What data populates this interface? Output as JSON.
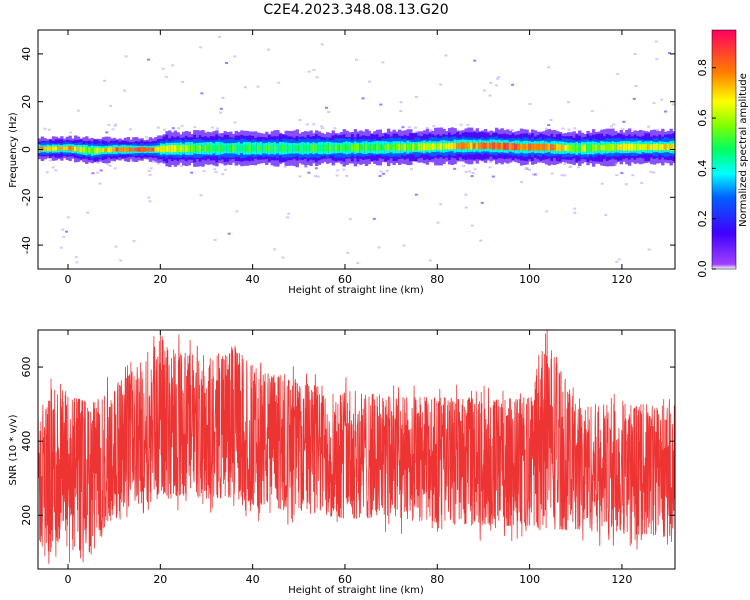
{
  "figure": {
    "title": "C2E4.2023.348.08.13.G20"
  },
  "chart_data": [
    {
      "type": "heatmap",
      "xlabel": "Height of straight line (km)",
      "ylabel": "Frequency (Hz)",
      "xlim": [
        -6.5,
        131.5
      ],
      "ylim": [
        -50,
        50
      ],
      "xticks": [
        0,
        20,
        40,
        60,
        80,
        100,
        120
      ],
      "yticks": [
        -40,
        -20,
        0,
        20,
        40
      ],
      "colorscale": [
        "#8000ff",
        "#0000ff",
        "#00ffff",
        "#00ff00",
        "#ffff00",
        "#ff8000",
        "#ff0040"
      ],
      "colorbar": {
        "label": "Normalized spectral amplitude",
        "range": [
          0,
          0.95
        ],
        "ticks": [
          0.0,
          0.2,
          0.4,
          0.6,
          0.8
        ]
      },
      "band_profile": [
        {
          "x": -6,
          "center": 0.3,
          "halfwidth": 2.0,
          "peak": 0.8
        },
        {
          "x": 0,
          "center": 0.5,
          "halfwidth": 2.0,
          "peak": 0.85
        },
        {
          "x": 5,
          "center": -0.5,
          "halfwidth": 2.5,
          "peak": 0.6
        },
        {
          "x": 10,
          "center": 0.0,
          "halfwidth": 2.0,
          "peak": 0.9
        },
        {
          "x": 18,
          "center": 0.0,
          "halfwidth": 2.0,
          "peak": 0.9
        },
        {
          "x": 21,
          "center": 0.3,
          "halfwidth": 3.0,
          "peak": 0.7
        },
        {
          "x": 30,
          "center": 0.5,
          "halfwidth": 3.0,
          "peak": 0.55
        },
        {
          "x": 50,
          "center": 0.5,
          "halfwidth": 3.0,
          "peak": 0.5
        },
        {
          "x": 75,
          "center": 1.0,
          "halfwidth": 3.0,
          "peak": 0.6
        },
        {
          "x": 85,
          "center": 1.5,
          "halfwidth": 3.0,
          "peak": 0.8
        },
        {
          "x": 92,
          "center": 1.5,
          "halfwidth": 3.0,
          "peak": 0.95
        },
        {
          "x": 98,
          "center": 1.0,
          "halfwidth": 3.0,
          "peak": 0.92
        },
        {
          "x": 103,
          "center": 1.0,
          "halfwidth": 3.0,
          "peak": 0.9
        },
        {
          "x": 110,
          "center": 0.5,
          "halfwidth": 3.0,
          "peak": 0.6
        },
        {
          "x": 120,
          "center": 1.0,
          "halfwidth": 3.0,
          "peak": 0.7
        },
        {
          "x": 131,
          "center": 1.0,
          "halfwidth": 3.0,
          "peak": 0.75
        }
      ]
    },
    {
      "type": "line",
      "xlabel": "Height of straight line (km)",
      "ylabel": "SNR (10 * v/v)",
      "xlim": [
        -6.5,
        131.5
      ],
      "ylim": [
        55,
        700
      ],
      "xticks": [
        0,
        20,
        40,
        60,
        80,
        100,
        120
      ],
      "yticks": [
        200,
        400,
        600
      ],
      "color": "#ee3333",
      "envelope": [
        {
          "x": -6,
          "low": 120,
          "high": 460
        },
        {
          "x": -3,
          "low": 80,
          "high": 560
        },
        {
          "x": 0,
          "low": 100,
          "high": 530
        },
        {
          "x": 5,
          "low": 90,
          "high": 500
        },
        {
          "x": 10,
          "low": 200,
          "high": 550
        },
        {
          "x": 15,
          "low": 230,
          "high": 600
        },
        {
          "x": 20,
          "low": 240,
          "high": 690
        },
        {
          "x": 25,
          "low": 250,
          "high": 640
        },
        {
          "x": 30,
          "low": 240,
          "high": 620
        },
        {
          "x": 36,
          "low": 250,
          "high": 660
        },
        {
          "x": 40,
          "low": 220,
          "high": 600
        },
        {
          "x": 50,
          "low": 210,
          "high": 560
        },
        {
          "x": 60,
          "low": 190,
          "high": 540
        },
        {
          "x": 70,
          "low": 190,
          "high": 520
        },
        {
          "x": 80,
          "low": 180,
          "high": 520
        },
        {
          "x": 90,
          "low": 170,
          "high": 510
        },
        {
          "x": 100,
          "low": 170,
          "high": 520
        },
        {
          "x": 104,
          "low": 160,
          "high": 690
        },
        {
          "x": 110,
          "low": 160,
          "high": 500
        },
        {
          "x": 120,
          "low": 150,
          "high": 500
        },
        {
          "x": 131,
          "low": 140,
          "high": 500
        }
      ]
    }
  ]
}
